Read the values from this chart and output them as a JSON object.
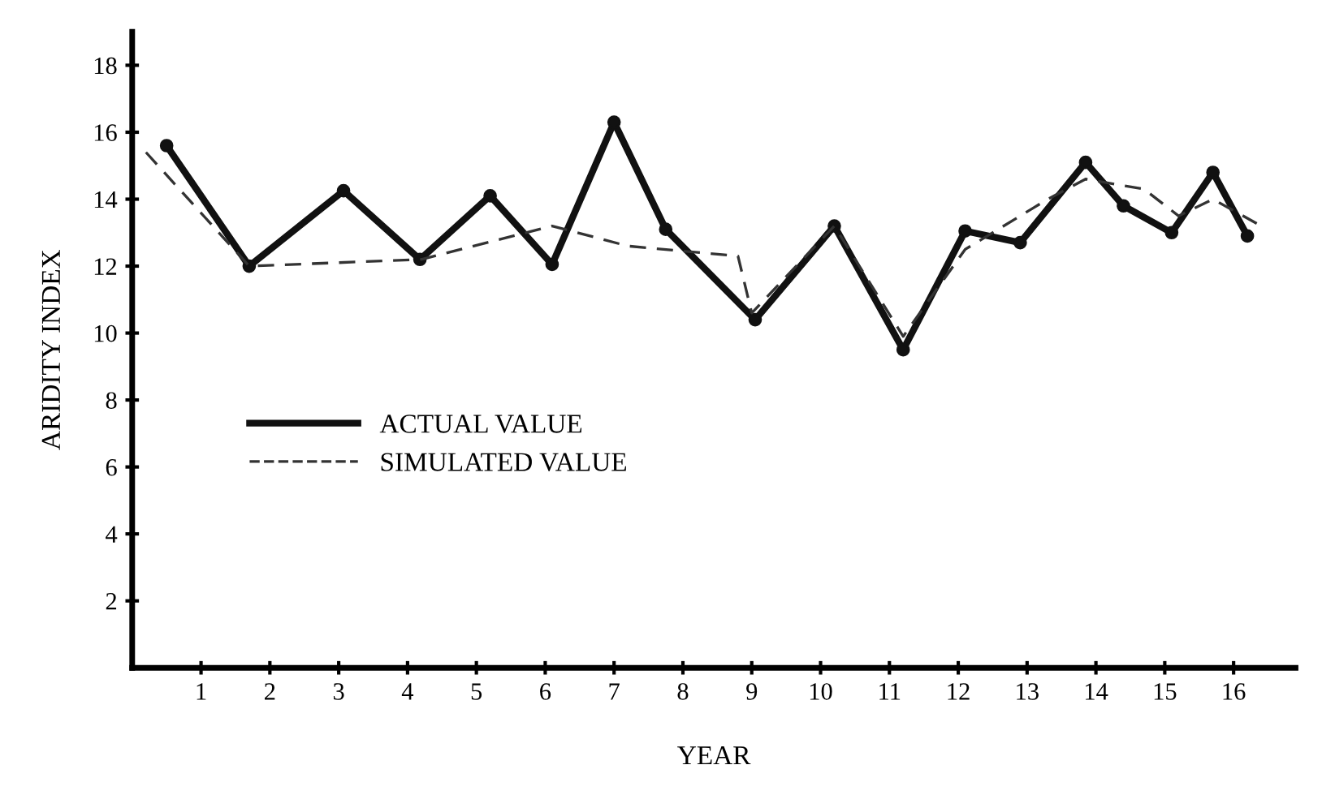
{
  "chart_data": {
    "type": "line",
    "xlabel": "YEAR",
    "ylabel": "ARIDITY INDEX",
    "xlim": [
      0,
      16.9
    ],
    "ylim": [
      0,
      19
    ],
    "xticks": [
      1,
      2,
      3,
      4,
      5,
      6,
      7,
      8,
      9,
      10,
      11,
      12,
      13,
      14,
      15,
      16
    ],
    "yticks": [
      2,
      4,
      6,
      8,
      10,
      12,
      14,
      16,
      18
    ],
    "grid": false,
    "legend": "left",
    "series": [
      {
        "name": "ACTUAL VALUE",
        "color": "#111111",
        "marker": "circle",
        "line_style": "solid",
        "x": [
          0.5,
          1.7,
          3.07,
          4.18,
          5.2,
          6.1,
          7.0,
          7.75,
          9.05,
          10.2,
          11.2,
          12.1,
          12.9,
          13.85,
          14.4,
          15.1,
          15.7,
          16.2
        ],
        "values": [
          15.6,
          12.0,
          14.25,
          12.2,
          14.1,
          12.05,
          16.3,
          13.1,
          10.4,
          13.2,
          9.5,
          13.05,
          12.7,
          15.1,
          13.8,
          13.0,
          14.8,
          12.9
        ]
      },
      {
        "name": "SIMULATED VALUE",
        "color": "#333333",
        "marker": "none",
        "line_style": "dashed",
        "x": [
          0.2,
          1.7,
          4.2,
          6.1,
          7.2,
          8.8,
          9.0,
          10.2,
          11.2,
          12.1,
          13.3,
          13.85,
          14.7,
          15.2,
          15.7,
          16.4
        ],
        "values": [
          15.4,
          12.0,
          12.2,
          13.2,
          12.6,
          12.3,
          10.6,
          13.2,
          9.9,
          12.5,
          14.0,
          14.6,
          14.3,
          13.5,
          14.0,
          13.2
        ]
      }
    ]
  }
}
